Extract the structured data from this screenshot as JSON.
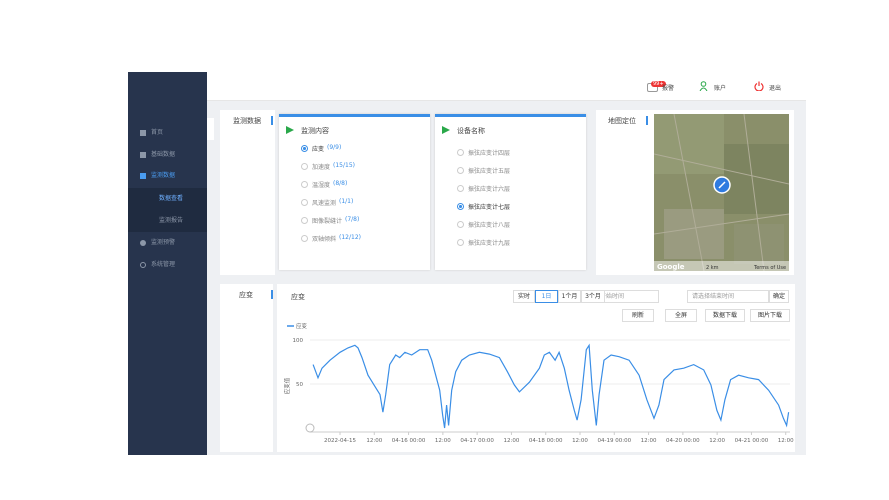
{
  "header": {
    "alarm_badge": "99+",
    "alarm": "报警",
    "account": "账户",
    "logout": "退出"
  },
  "sidebar": {
    "menu": [
      {
        "label": "首页"
      },
      {
        "label": "基础数据"
      },
      {
        "label": "监测数据"
      },
      {
        "label": "数据查看"
      },
      {
        "label": "监测报告"
      },
      {
        "label": "监测预警"
      },
      {
        "label": "系统管理"
      }
    ]
  },
  "left_tab": "监测数据",
  "monitor_panel": {
    "title": "监测内容",
    "selected": 0,
    "items": [
      {
        "label": "应变",
        "count": "(9/9)"
      },
      {
        "label": "加速度",
        "count": "(15/15)"
      },
      {
        "label": "温湿度",
        "count": "(8/8)"
      },
      {
        "label": "风速监测",
        "count": "(1/1)"
      },
      {
        "label": "图像裂缝计",
        "count": "(7/8)"
      },
      {
        "label": "双轴倾斜",
        "count": "(12/12)"
      }
    ]
  },
  "device_panel": {
    "title": "设备名称",
    "selected": 3,
    "items": [
      "振弦应变计四层",
      "振弦应变计五层",
      "振弦应变计六层",
      "振弦应变计七层",
      "振弦应变计八层",
      "振弦应变计九层"
    ]
  },
  "map_panel": {
    "title": "地图定位",
    "google": "Google",
    "scale": "2 km",
    "terms": "Terms of Use"
  },
  "chart_tab": "应变",
  "toolbar": {
    "title": "应变",
    "ranges": [
      "实时",
      "1日",
      "1个月",
      "3个月"
    ],
    "active_range": 1,
    "start_placeholder": "请选择开始时间",
    "end_placeholder": "请选择结束时间",
    "confirm": "确定",
    "buttons": [
      "刷新",
      "全屏",
      "数据下载",
      "图片下载"
    ]
  },
  "chart_data": {
    "type": "line",
    "y_label": "应变值",
    "legend": "top-left",
    "grid": true,
    "x": [
      -9.4,
      -7.7,
      -6.3,
      -3.5,
      0,
      2.8,
      5.2,
      6.3,
      7.7,
      9.8,
      11.9,
      14.0,
      15.0,
      16.0,
      17.4,
      19.5,
      20.9,
      22.7,
      25.1,
      27.9,
      30.7,
      32.1,
      33.5,
      34.9,
      35.9,
      36.6,
      37.3,
      38.0,
      39.1,
      40.5,
      42.6,
      45.3,
      48.8,
      52.3,
      55.8,
      58.6,
      61.0,
      62.8,
      66.3,
      69.8,
      71.5,
      73.3,
      75.3,
      76.7,
      78.5,
      80.2,
      82.0,
      83.0,
      84.4,
      86.2,
      87.2,
      88.3,
      89.7,
      90.7,
      92.4,
      94.9,
      97.7,
      101.2,
      104.7,
      107.4,
      109.9,
      111.6,
      113.4,
      116.9,
      120.3,
      123.8,
      127.3,
      129.8,
      131.9,
      133.3,
      134.7,
      136.7,
      139.5,
      143.0,
      146.5,
      150.0,
      153.5,
      155.2,
      156.3,
      157.0
    ],
    "series": [
      {
        "name": "应变",
        "color": "#3a8ee6",
        "values": [
          72,
          57,
          68,
          77,
          86,
          91,
          94,
          91,
          80,
          60,
          49,
          38,
          18,
          38,
          72,
          83,
          80,
          86,
          83,
          89,
          89,
          77,
          60,
          43,
          15,
          0,
          26,
          3,
          43,
          64,
          77,
          83,
          86,
          84,
          80,
          64,
          49,
          41,
          52,
          68,
          83,
          86,
          77,
          86,
          68,
          43,
          20,
          9,
          32,
          89,
          94,
          43,
          3,
          38,
          77,
          83,
          81,
          77,
          60,
          32,
          11,
          26,
          55,
          66,
          68,
          72,
          66,
          49,
          20,
          9,
          32,
          55,
          60,
          57,
          55,
          43,
          26,
          11,
          3,
          18
        ]
      }
    ],
    "xlim": [
      -10.5,
      157.5
    ],
    "ylim": [
      0,
      100
    ],
    "yticks": [
      50,
      100
    ],
    "xticks": [
      {
        "value": 0,
        "label": "2022-04-15"
      },
      {
        "value": 12,
        "label": "12:00"
      },
      {
        "value": 24,
        "label": "04-16 00:00"
      },
      {
        "value": 36,
        "label": "12:00"
      },
      {
        "value": 48,
        "label": "04-17 00:00"
      },
      {
        "value": 60,
        "label": "12:00"
      },
      {
        "value": 72,
        "label": "04-18 00:00"
      },
      {
        "value": 84,
        "label": "12:00"
      },
      {
        "value": 96,
        "label": "04-19 00:00"
      },
      {
        "value": 108,
        "label": "12:00"
      },
      {
        "value": 120,
        "label": "04-20 00:00"
      },
      {
        "value": 132,
        "label": "12:00"
      },
      {
        "value": 144,
        "label": "04-21 00:00"
      },
      {
        "value": 156,
        "label": "12:00"
      }
    ]
  }
}
